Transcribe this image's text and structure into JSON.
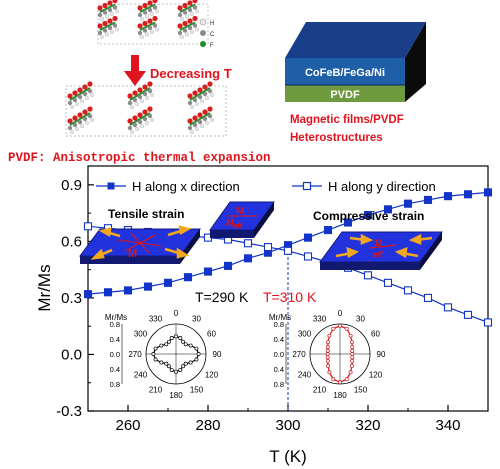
{
  "figure": {
    "crystal_legend": [
      "H",
      "C",
      "F"
    ],
    "crystal_colors": {
      "H": "#e9e9e9",
      "C": "#8c8c8c",
      "F": "#d81f1f",
      "bond": "#1f8f2a"
    },
    "arrow_label": "Decreasing T",
    "caption_left": "PVDF: Anisotropic thermal expansion",
    "stack_top_label": "CoFeB/FeGa/Ni",
    "stack_bottom_label": "PVDF",
    "caption_right_line1": "Magnetic films/PVDF",
    "caption_right_line2": "Heterostructures",
    "colors": {
      "accent_red": "#e0141e",
      "stack_blue": "#1f5fa8",
      "stack_green": "#6d9a3c",
      "plate_blue": "#2233dd",
      "arrow_orange": "#f2a81d",
      "series_blue": "#1234c8"
    }
  },
  "chart_data": {
    "type": "line",
    "xlabel": "T (K)",
    "ylabel": "Mr/Ms",
    "xlim": [
      250,
      350
    ],
    "ylim": [
      -0.3,
      1.0
    ],
    "xticks": [
      260,
      280,
      300,
      320,
      340
    ],
    "yticks": [
      -0.3,
      0.0,
      0.3,
      0.6,
      0.9
    ],
    "legend_position": "top",
    "series": [
      {
        "name": "H along x direction",
        "marker": "filled-square",
        "x": [
          250,
          255,
          260,
          265,
          270,
          275,
          280,
          285,
          290,
          295,
          300,
          305,
          310,
          315,
          320,
          325,
          330,
          335,
          340,
          345,
          350
        ],
        "y": [
          0.32,
          0.33,
          0.34,
          0.36,
          0.38,
          0.41,
          0.44,
          0.47,
          0.51,
          0.54,
          0.58,
          0.62,
          0.66,
          0.7,
          0.74,
          0.77,
          0.8,
          0.82,
          0.84,
          0.85,
          0.86
        ]
      },
      {
        "name": "H along y direction",
        "marker": "open-square",
        "x": [
          250,
          255,
          260,
          265,
          270,
          275,
          280,
          285,
          290,
          295,
          300,
          305,
          310,
          315,
          320,
          325,
          330,
          335,
          340,
          345,
          350
        ],
        "y": [
          0.68,
          0.67,
          0.66,
          0.65,
          0.64,
          0.63,
          0.62,
          0.61,
          0.59,
          0.57,
          0.55,
          0.52,
          0.49,
          0.46,
          0.42,
          0.38,
          0.34,
          0.3,
          0.25,
          0.21,
          0.17
        ]
      }
    ],
    "vline_x": 300,
    "annotations": {
      "tensile": "Tensile strain",
      "compressive": "Compressive strain",
      "t290": "T=290 K",
      "t310": "T=310 K",
      "plate_left": "M",
      "plate_mid": "M",
      "plate_right": "M"
    },
    "polar_insets": [
      {
        "name": "T=290 K",
        "color": "#000000",
        "ylabel": "Mr/Ms",
        "r_ticks": [
          "0.8",
          "0.4",
          "0.0",
          "0.4",
          "0.8"
        ],
        "angles": [
          "0",
          "30",
          "60",
          "90",
          "120",
          "150",
          "180",
          "210",
          "240",
          "270",
          "300",
          "330"
        ],
        "theta": [
          0,
          15,
          30,
          45,
          60,
          75,
          90,
          105,
          120,
          135,
          150,
          165,
          180,
          195,
          210,
          225,
          240,
          255,
          270,
          285,
          300,
          315,
          330,
          345
        ],
        "r": [
          0.5,
          0.47,
          0.4,
          0.39,
          0.48,
          0.6,
          0.64,
          0.6,
          0.48,
          0.39,
          0.4,
          0.47,
          0.5,
          0.47,
          0.4,
          0.39,
          0.48,
          0.6,
          0.64,
          0.6,
          0.48,
          0.39,
          0.4,
          0.47
        ]
      },
      {
        "name": "T=310 K",
        "color": "#d01a1a",
        "ylabel": "Mr/Ms",
        "r_ticks": [
          "0.8",
          "0.4",
          "0.0",
          "0.4",
          "0.8"
        ],
        "angles": [
          "0",
          "30",
          "60",
          "90",
          "120",
          "150",
          "180",
          "210",
          "240",
          "270",
          "300",
          "330"
        ],
        "theta": [
          0,
          15,
          30,
          45,
          60,
          75,
          90,
          105,
          120,
          135,
          150,
          165,
          180,
          195,
          210,
          225,
          240,
          255,
          270,
          285,
          300,
          315,
          330,
          345
        ],
        "r": [
          0.8,
          0.74,
          0.6,
          0.48,
          0.4,
          0.36,
          0.35,
          0.36,
          0.4,
          0.48,
          0.6,
          0.74,
          0.8,
          0.74,
          0.6,
          0.48,
          0.4,
          0.36,
          0.35,
          0.36,
          0.4,
          0.48,
          0.6,
          0.74
        ]
      }
    ]
  }
}
